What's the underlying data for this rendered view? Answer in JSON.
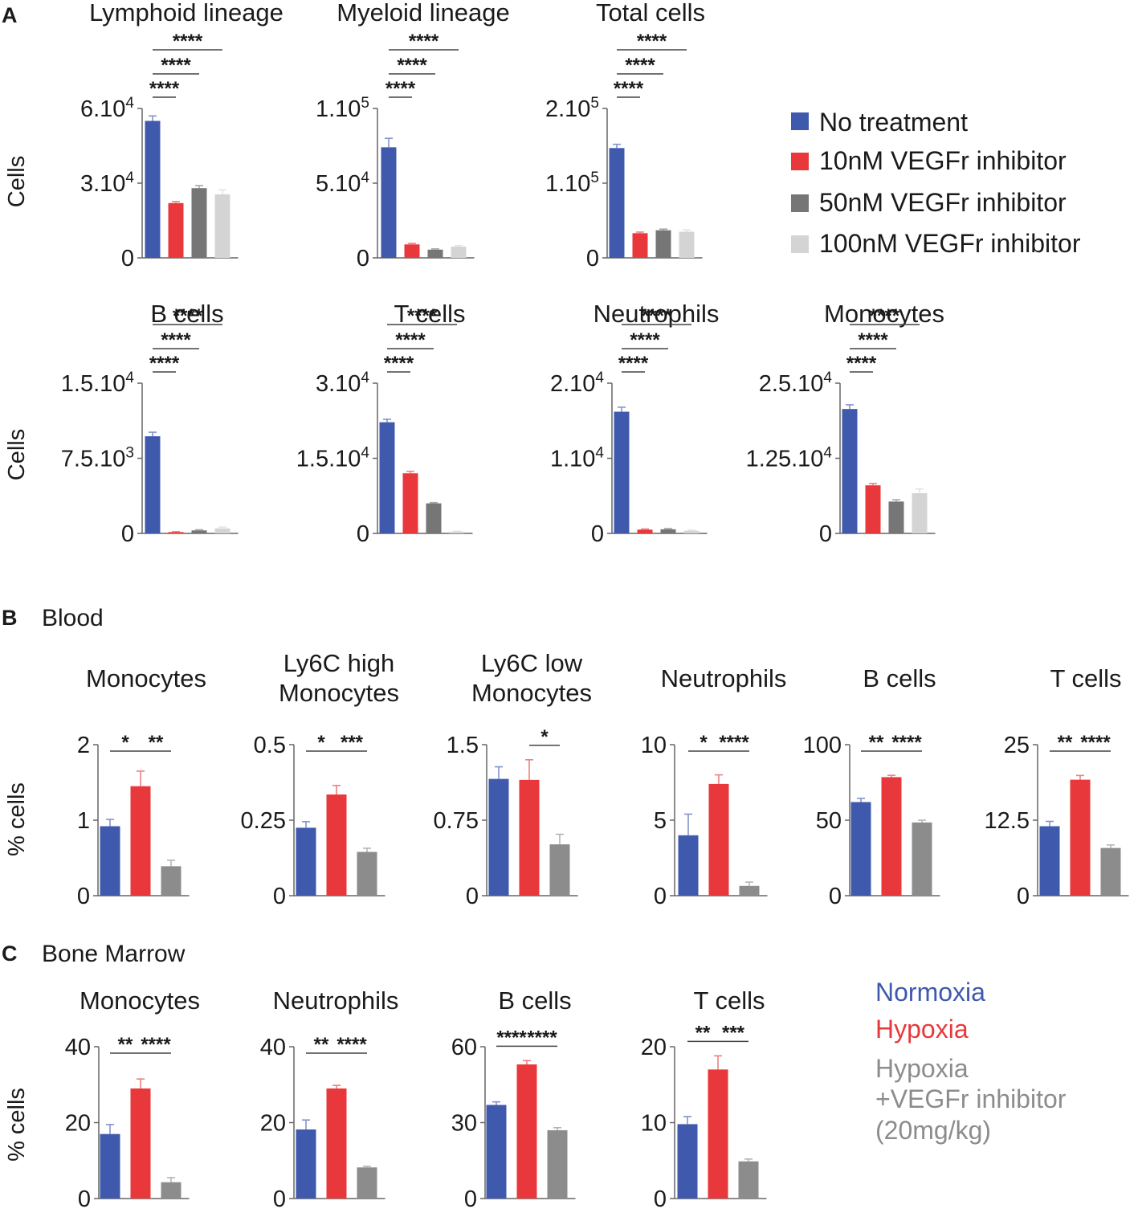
{
  "panel_labels": {
    "a": "A",
    "b": "B",
    "c": "C"
  },
  "section_titles": {
    "b": "Blood",
    "c": "Bone Marrow"
  },
  "y_labels": {
    "cells": "Cells",
    "pct": "% cells"
  },
  "legend_a": {
    "items": [
      {
        "label": "No treatment",
        "color": "#3f5aad"
      },
      {
        "label": "10nM VEGFr inhibitor",
        "color": "#e8383b"
      },
      {
        "label": "50nM VEGFr inhibitor",
        "color": "#767676"
      },
      {
        "label": "100nM VEGFr inhibitor",
        "color": "#d4d4d4"
      }
    ]
  },
  "legend_bc": {
    "items": [
      {
        "label": "Normoxia",
        "color": "#3f5aad"
      },
      {
        "label": "Hypoxia",
        "color": "#e8383b"
      },
      {
        "label": "Hypoxia",
        "color": "#8c8c8c"
      },
      {
        "label": "+VEGFr inhibitor",
        "color": "#8c8c8c"
      },
      {
        "label": "(20mg/kg)",
        "color": "#8c8c8c"
      }
    ]
  },
  "chart_data": [
    {
      "id": "a1",
      "type": "bar",
      "title": [
        "Lymphoid lineage"
      ],
      "ylabel": "Cells",
      "ylim": [
        0,
        60000
      ],
      "yticks": [
        {
          "v": 0,
          "base": "0",
          "sup": ""
        },
        {
          "v": 30000,
          "base": "3.10",
          "sup": "4"
        },
        {
          "v": 60000,
          "base": "6.10",
          "sup": "4"
        }
      ],
      "categories": [
        "No treatment",
        "10nM VEGFr inhibitor",
        "50nM VEGFr inhibitor",
        "100nM VEGFr inhibitor"
      ],
      "values": [
        55000,
        22000,
        28000,
        25500
      ],
      "errors": [
        2000,
        600,
        1000,
        1800
      ],
      "colors": [
        "#3f5aad",
        "#e8383b",
        "#767676",
        "#d4d4d4"
      ],
      "sig": [
        {
          "from": 0,
          "to": 1,
          "label": "****"
        },
        {
          "from": 0,
          "to": 2,
          "label": "****"
        },
        {
          "from": 0,
          "to": 3,
          "label": "****"
        }
      ]
    },
    {
      "id": "a2",
      "type": "bar",
      "title": [
        "Myeloid lineage"
      ],
      "ylabel": "",
      "ylim": [
        0,
        100000
      ],
      "yticks": [
        {
          "v": 0,
          "base": "0",
          "sup": ""
        },
        {
          "v": 50000,
          "base": "5.10",
          "sup": "4"
        },
        {
          "v": 100000,
          "base": "1.10",
          "sup": "5"
        }
      ],
      "categories": [
        "No treatment",
        "10nM VEGFr inhibitor",
        "50nM VEGFr inhibitor",
        "100nM VEGFr inhibitor"
      ],
      "values": [
        74000,
        9000,
        5500,
        7500
      ],
      "errors": [
        6000,
        700,
        500,
        700
      ],
      "colors": [
        "#3f5aad",
        "#e8383b",
        "#767676",
        "#d4d4d4"
      ],
      "sig": [
        {
          "from": 0,
          "to": 1,
          "label": "****"
        },
        {
          "from": 0,
          "to": 2,
          "label": "****"
        },
        {
          "from": 0,
          "to": 3,
          "label": "****"
        }
      ]
    },
    {
      "id": "a3",
      "type": "bar",
      "title": [
        "Total cells"
      ],
      "ylabel": "",
      "ylim": [
        0,
        200000
      ],
      "yticks": [
        {
          "v": 0,
          "base": "0",
          "sup": ""
        },
        {
          "v": 100000,
          "base": "1.10",
          "sup": "5"
        },
        {
          "v": 200000,
          "base": "2.10",
          "sup": "5"
        }
      ],
      "categories": [
        "No treatment",
        "10nM VEGFr inhibitor",
        "50nM VEGFr inhibitor",
        "100nM VEGFr inhibitor"
      ],
      "values": [
        147000,
        33000,
        37000,
        35000
      ],
      "errors": [
        5000,
        1500,
        1500,
        2500
      ],
      "colors": [
        "#3f5aad",
        "#e8383b",
        "#767676",
        "#d4d4d4"
      ],
      "sig": [
        {
          "from": 0,
          "to": 1,
          "label": "****"
        },
        {
          "from": 0,
          "to": 2,
          "label": "****"
        },
        {
          "from": 0,
          "to": 3,
          "label": "****"
        }
      ]
    },
    {
      "id": "a4",
      "type": "bar",
      "title": [
        "B cells"
      ],
      "ylabel": "Cells",
      "ylim": [
        0,
        15000
      ],
      "yticks": [
        {
          "v": 0,
          "base": "0",
          "sup": ""
        },
        {
          "v": 7500,
          "base": "7.5.10",
          "sup": "3"
        },
        {
          "v": 15000,
          "base": "1.5.10",
          "sup": "4"
        }
      ],
      "categories": [
        "No treatment",
        "10nM VEGFr inhibitor",
        "50nM VEGFr inhibitor",
        "100nM VEGFr inhibitor"
      ],
      "values": [
        9700,
        130,
        300,
        500
      ],
      "errors": [
        400,
        40,
        60,
        120
      ],
      "colors": [
        "#3f5aad",
        "#e8383b",
        "#767676",
        "#d4d4d4"
      ],
      "sig": [
        {
          "from": 0,
          "to": 1,
          "label": "****"
        },
        {
          "from": 0,
          "to": 2,
          "label": "****"
        },
        {
          "from": 0,
          "to": 3,
          "label": "****"
        }
      ]
    },
    {
      "id": "a5",
      "type": "bar",
      "title": [
        "T cells"
      ],
      "ylabel": "",
      "ylim": [
        0,
        30000
      ],
      "yticks": [
        {
          "v": 0,
          "base": "0",
          "sup": ""
        },
        {
          "v": 15000,
          "base": "1.5.10",
          "sup": "4"
        },
        {
          "v": 30000,
          "base": "3.10",
          "sup": "4"
        }
      ],
      "categories": [
        "No treatment",
        "10nM VEGFr inhibitor",
        "50nM VEGFr inhibitor",
        "100nM VEGFr inhibitor"
      ],
      "values": [
        22200,
        12000,
        6000,
        350
      ],
      "errors": [
        600,
        400,
        150,
        80
      ],
      "colors": [
        "#3f5aad",
        "#e8383b",
        "#767676",
        "#d4d4d4"
      ],
      "sig": [
        {
          "from": 0,
          "to": 1,
          "label": "****"
        },
        {
          "from": 0,
          "to": 2,
          "label": "****"
        },
        {
          "from": 0,
          "to": 3,
          "label": "****"
        }
      ]
    },
    {
      "id": "a6",
      "type": "bar",
      "title": [
        "Neutrophils"
      ],
      "ylabel": "",
      "ylim": [
        0,
        20000
      ],
      "yticks": [
        {
          "v": 0,
          "base": "0",
          "sup": ""
        },
        {
          "v": 10000,
          "base": "1.10",
          "sup": "4"
        },
        {
          "v": 20000,
          "base": "2.10",
          "sup": "4"
        }
      ],
      "categories": [
        "No treatment",
        "10nM VEGFr inhibitor",
        "50nM VEGFr inhibitor",
        "100nM VEGFr inhibitor"
      ],
      "values": [
        16200,
        500,
        550,
        350
      ],
      "errors": [
        600,
        80,
        100,
        80
      ],
      "colors": [
        "#3f5aad",
        "#e8383b",
        "#767676",
        "#d4d4d4"
      ],
      "sig": [
        {
          "from": 0,
          "to": 1,
          "label": "****"
        },
        {
          "from": 0,
          "to": 2,
          "label": "****"
        },
        {
          "from": 0,
          "to": 3,
          "label": "****"
        }
      ]
    },
    {
      "id": "a7",
      "type": "bar",
      "title": [
        "Monocytes"
      ],
      "ylabel": "",
      "ylim": [
        0,
        25000
      ],
      "yticks": [
        {
          "v": 0,
          "base": "0",
          "sup": ""
        },
        {
          "v": 12500,
          "base": "1.25.10",
          "sup": "4"
        },
        {
          "v": 25000,
          "base": "2.5.10",
          "sup": "4"
        }
      ],
      "categories": [
        "No treatment",
        "10nM VEGFr inhibitor",
        "50nM VEGFr inhibitor",
        "100nM VEGFr inhibitor"
      ],
      "values": [
        20700,
        8000,
        5300,
        6700
      ],
      "errors": [
        700,
        300,
        300,
        700
      ],
      "colors": [
        "#3f5aad",
        "#e8383b",
        "#767676",
        "#d4d4d4"
      ],
      "sig": [
        {
          "from": 0,
          "to": 1,
          "label": "****"
        },
        {
          "from": 0,
          "to": 2,
          "label": "****"
        },
        {
          "from": 0,
          "to": 3,
          "label": "****"
        }
      ]
    },
    {
      "id": "b1",
      "type": "bar",
      "title": [
        "Monocytes"
      ],
      "ylabel": "% cells",
      "ylim": [
        0,
        2
      ],
      "yticks": [
        {
          "v": 0,
          "base": "0",
          "sup": ""
        },
        {
          "v": 1,
          "base": "1",
          "sup": ""
        },
        {
          "v": 2,
          "base": "2",
          "sup": ""
        }
      ],
      "categories": [
        "Normoxia",
        "Hypoxia",
        "Hypoxia +VEGFr inhibitor"
      ],
      "values": [
        0.92,
        1.45,
        0.39
      ],
      "errors": [
        0.09,
        0.2,
        0.08
      ],
      "colors": [
        "#3f5aad",
        "#e8383b",
        "#8c8c8c"
      ],
      "sig": [
        {
          "from": 0,
          "to": 1,
          "label": "*"
        },
        {
          "from": 1,
          "to": 2,
          "label": "**"
        }
      ]
    },
    {
      "id": "b2",
      "type": "bar",
      "title": [
        "Ly6C high",
        "Monocytes"
      ],
      "ylabel": "",
      "ylim": [
        0,
        0.5
      ],
      "yticks": [
        {
          "v": 0,
          "base": "0",
          "sup": ""
        },
        {
          "v": 0.25,
          "base": "0.25",
          "sup": ""
        },
        {
          "v": 0.5,
          "base": "0.5",
          "sup": ""
        }
      ],
      "categories": [
        "Normoxia",
        "Hypoxia",
        "Hypoxia +VEGFr inhibitor"
      ],
      "values": [
        0.225,
        0.335,
        0.145
      ],
      "errors": [
        0.02,
        0.03,
        0.012
      ],
      "colors": [
        "#3f5aad",
        "#e8383b",
        "#8c8c8c"
      ],
      "sig": [
        {
          "from": 0,
          "to": 1,
          "label": "*"
        },
        {
          "from": 1,
          "to": 2,
          "label": "***"
        }
      ]
    },
    {
      "id": "b3",
      "type": "bar",
      "title": [
        "Ly6C low",
        "Monocytes"
      ],
      "ylabel": "",
      "ylim": [
        0,
        1.5
      ],
      "yticks": [
        {
          "v": 0,
          "base": "0",
          "sup": ""
        },
        {
          "v": 0.75,
          "base": "0.75",
          "sup": ""
        },
        {
          "v": 1.5,
          "base": "1.5",
          "sup": ""
        }
      ],
      "categories": [
        "Normoxia",
        "Hypoxia",
        "Hypoxia +VEGFr inhibitor"
      ],
      "values": [
        1.16,
        1.15,
        0.51
      ],
      "errors": [
        0.12,
        0.2,
        0.1
      ],
      "colors": [
        "#3f5aad",
        "#e8383b",
        "#8c8c8c"
      ],
      "sig": [
        {
          "from": 1,
          "to": 2,
          "label": "*"
        }
      ]
    },
    {
      "id": "b4",
      "type": "bar",
      "title": [
        "Neutrophils"
      ],
      "ylabel": "",
      "ylim": [
        0,
        10
      ],
      "yticks": [
        {
          "v": 0,
          "base": "0",
          "sup": ""
        },
        {
          "v": 5,
          "base": "5",
          "sup": ""
        },
        {
          "v": 10,
          "base": "10",
          "sup": ""
        }
      ],
      "categories": [
        "Normoxia",
        "Hypoxia",
        "Hypoxia +VEGFr inhibitor"
      ],
      "values": [
        4.0,
        7.4,
        0.65
      ],
      "errors": [
        1.4,
        0.6,
        0.25
      ],
      "colors": [
        "#3f5aad",
        "#e8383b",
        "#8c8c8c"
      ],
      "sig": [
        {
          "from": 0,
          "to": 1,
          "label": "*"
        },
        {
          "from": 1,
          "to": 2,
          "label": "****"
        }
      ]
    },
    {
      "id": "b5",
      "type": "bar",
      "title": [
        "B cells"
      ],
      "ylabel": "",
      "ylim": [
        0,
        100
      ],
      "yticks": [
        {
          "v": 0,
          "base": "0",
          "sup": ""
        },
        {
          "v": 50,
          "base": "50",
          "sup": ""
        },
        {
          "v": 100,
          "base": "100",
          "sup": ""
        }
      ],
      "categories": [
        "Normoxia",
        "Hypoxia",
        "Hypoxia +VEGFr inhibitor"
      ],
      "values": [
        62,
        78.5,
        48.5
      ],
      "errors": [
        2.5,
        1.2,
        1.5
      ],
      "colors": [
        "#3f5aad",
        "#e8383b",
        "#8c8c8c"
      ],
      "sig": [
        {
          "from": 0,
          "to": 1,
          "label": "**"
        },
        {
          "from": 1,
          "to": 2,
          "label": "****"
        }
      ]
    },
    {
      "id": "b6",
      "type": "bar",
      "title": [
        "T cells"
      ],
      "ylabel": "",
      "ylim": [
        0,
        25
      ],
      "yticks": [
        {
          "v": 0,
          "base": "0",
          "sup": ""
        },
        {
          "v": 12.5,
          "base": "12.5",
          "sup": ""
        },
        {
          "v": 25,
          "base": "25",
          "sup": ""
        }
      ],
      "categories": [
        "Normoxia",
        "Hypoxia",
        "Hypoxia +VEGFr inhibitor"
      ],
      "values": [
        11.5,
        19.2,
        7.9
      ],
      "errors": [
        0.8,
        0.7,
        0.5
      ],
      "colors": [
        "#3f5aad",
        "#e8383b",
        "#8c8c8c"
      ],
      "sig": [
        {
          "from": 0,
          "to": 1,
          "label": "**"
        },
        {
          "from": 1,
          "to": 2,
          "label": "****"
        }
      ]
    },
    {
      "id": "c1",
      "type": "bar",
      "title": [
        "Monocytes"
      ],
      "ylabel": "% cells",
      "ylim": [
        0,
        40
      ],
      "yticks": [
        {
          "v": 0,
          "base": "0",
          "sup": ""
        },
        {
          "v": 20,
          "base": "20",
          "sup": ""
        },
        {
          "v": 40,
          "base": "40",
          "sup": ""
        }
      ],
      "categories": [
        "Normoxia",
        "Hypoxia",
        "Hypoxia +VEGFr inhibitor"
      ],
      "values": [
        17,
        29,
        4.3
      ],
      "errors": [
        2.5,
        2.5,
        1.2
      ],
      "colors": [
        "#3f5aad",
        "#e8383b",
        "#8c8c8c"
      ],
      "sig": [
        {
          "from": 0,
          "to": 1,
          "label": "**"
        },
        {
          "from": 1,
          "to": 2,
          "label": "****"
        }
      ]
    },
    {
      "id": "c2",
      "type": "bar",
      "title": [
        "Neutrophils"
      ],
      "ylabel": "",
      "ylim": [
        0,
        40
      ],
      "yticks": [
        {
          "v": 0,
          "base": "0",
          "sup": ""
        },
        {
          "v": 20,
          "base": "20",
          "sup": ""
        },
        {
          "v": 40,
          "base": "40",
          "sup": ""
        }
      ],
      "categories": [
        "Normoxia",
        "Hypoxia",
        "Hypoxia +VEGFr inhibitor"
      ],
      "values": [
        18.2,
        29,
        8.2
      ],
      "errors": [
        2.5,
        0.8,
        0.3
      ],
      "colors": [
        "#3f5aad",
        "#e8383b",
        "#8c8c8c"
      ],
      "sig": [
        {
          "from": 0,
          "to": 1,
          "label": "**"
        },
        {
          "from": 1,
          "to": 2,
          "label": "****"
        }
      ]
    },
    {
      "id": "c3",
      "type": "bar",
      "title": [
        "B cells"
      ],
      "ylabel": "",
      "ylim": [
        0,
        60
      ],
      "yticks": [
        {
          "v": 0,
          "base": "0",
          "sup": ""
        },
        {
          "v": 30,
          "base": "30",
          "sup": ""
        },
        {
          "v": 60,
          "base": "60",
          "sup": ""
        }
      ],
      "categories": [
        "Normoxia",
        "Hypoxia",
        "Hypoxia +VEGFr inhibitor"
      ],
      "values": [
        37,
        53,
        27
      ],
      "errors": [
        1.2,
        1.5,
        1.0
      ],
      "colors": [
        "#3f5aad",
        "#e8383b",
        "#8c8c8c"
      ],
      "sig": [
        {
          "from": 0,
          "to": 1,
          "label": "****"
        },
        {
          "from": 1,
          "to": 2,
          "label": "****"
        }
      ]
    },
    {
      "id": "c4",
      "type": "bar",
      "title": [
        "T cells"
      ],
      "ylabel": "",
      "ylim": [
        0,
        20
      ],
      "yticks": [
        {
          "v": 0,
          "base": "0",
          "sup": ""
        },
        {
          "v": 10,
          "base": "10",
          "sup": ""
        },
        {
          "v": 20,
          "base": "20",
          "sup": ""
        }
      ],
      "categories": [
        "Normoxia",
        "Hypoxia",
        "Hypoxia +VEGFr inhibitor"
      ],
      "values": [
        9.8,
        17,
        4.9
      ],
      "errors": [
        1.0,
        1.8,
        0.3
      ],
      "colors": [
        "#3f5aad",
        "#e8383b",
        "#8c8c8c"
      ],
      "sig": [
        {
          "from": 0,
          "to": 1,
          "label": "**"
        },
        {
          "from": 1,
          "to": 2,
          "label": "***"
        }
      ]
    }
  ]
}
